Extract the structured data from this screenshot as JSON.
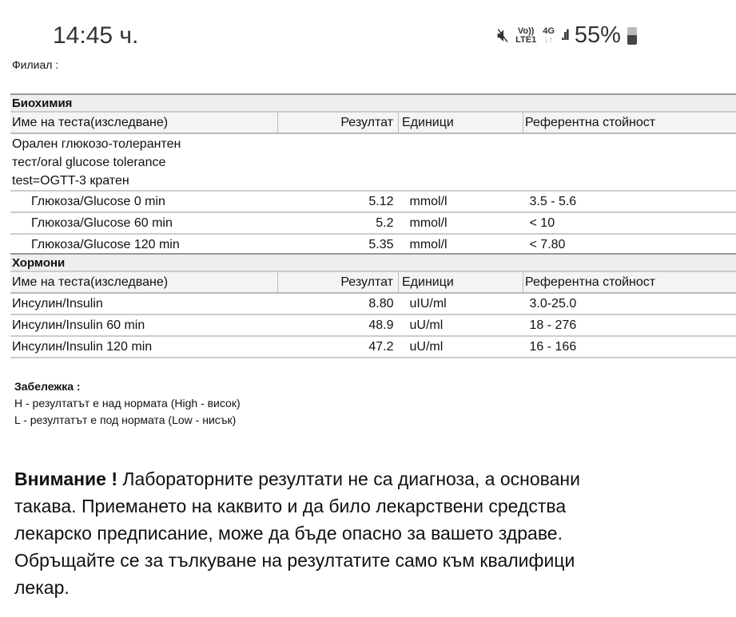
{
  "status_bar": {
    "time": "14:45 ч.",
    "network_top": "Vo))",
    "network_bottom": "LTE1",
    "data_type": "4G",
    "data_arrows": "↓↑",
    "battery": "55%",
    "icons": [
      "mute-icon",
      "signal-icon",
      "battery-icon"
    ]
  },
  "branch_label": "Филиал :",
  "biochem": {
    "title": "Биохимия",
    "headers": [
      "Име на теста(изследване)",
      "Резултат",
      "Единици",
      "Референтна стойност"
    ],
    "group": "Орален глюкозо-толерантен тест/oral glucose tolerance test=OGTT-3 кратен",
    "rows": [
      {
        "name": "Глюкоза/Glucose 0 min",
        "result": "5.12",
        "unit": "mmol/l",
        "ref": "3.5 - 5.6"
      },
      {
        "name": "Глюкоза/Glucose 60 min",
        "result": "5.2",
        "unit": "mmol/l",
        "ref": "< 10"
      },
      {
        "name": "Глюкоза/Glucose 120 min",
        "result": "5.35",
        "unit": "mmol/l",
        "ref": "< 7.80"
      }
    ]
  },
  "hormones": {
    "title": "Хормони",
    "headers": [
      "Име на теста(изследване)",
      "Резултат",
      "Единици",
      "Референтна стойност"
    ],
    "rows": [
      {
        "name": "Инсулин/Insulin",
        "result": "8.80",
        "unit": "uIU/ml",
        "ref": "3.0-25.0"
      },
      {
        "name": "Инсулин/Insulin 60 min",
        "result": "48.9",
        "unit": "uU/ml",
        "ref": "18 - 276"
      },
      {
        "name": "Инсулин/Insulin 120 min",
        "result": "47.2",
        "unit": "uU/ml",
        "ref": "16 - 166"
      }
    ]
  },
  "note": {
    "title": "Забележка :",
    "high": "H - резултатът е над нормата (High - висок)",
    "low": "L - резултатът е под нормата (Low - нисък)"
  },
  "warning": {
    "bold": "Внимание !",
    "lines": [
      " Лабораторните резултати не са диагноза, а основани",
      "такава. Приемането на каквито и да било лекарствени средства",
      "лекарско предписание, може да бъде опасно за вашето здраве.",
      "Обръщайте се за тълкуване на резултатите само към квалифици",
      "лекар."
    ]
  }
}
